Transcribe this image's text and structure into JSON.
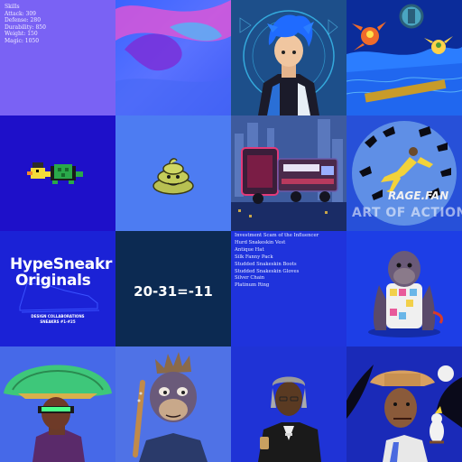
{
  "gallery": {
    "skills_card": {
      "title": "Skills",
      "lines": [
        "Attack: 309",
        "Defense: 280",
        "Durability: 850",
        "Weight: 150",
        "Magic: 1050"
      ]
    },
    "items_card": {
      "lines": [
        "Investment Scam of the Influencer",
        "Hurd Snakeskin Vest",
        "Antique Hat",
        "Silk Fanny Pack",
        "Studded Snakeskin Boots",
        "Studded Snakeskin Gloves",
        "Silver Chain",
        "Platinum Ring"
      ]
    },
    "hype_card": {
      "title_line1": "HypeSneakr",
      "title_line2": "Originals",
      "sub1": "DESIGN COLLABORATIONS",
      "sub2": "SNEAKRS #1-#25"
    },
    "equation_card": {
      "text": "20-31=-11"
    },
    "rage_card": {
      "title": "RAGE.FAN",
      "subtitle": "ART OF ACTION"
    }
  },
  "icons": [
    "pixel-duck-turtle-icon",
    "poop-emoji-icon"
  ]
}
